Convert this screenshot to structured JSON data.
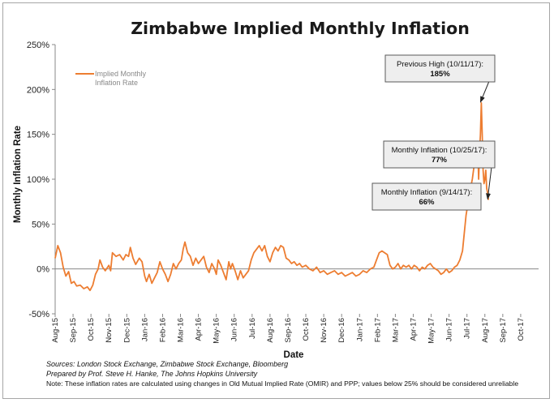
{
  "chart_data": {
    "type": "line",
    "title": "Zimbabwe Implied Monthly Inflation",
    "xlabel": "Date",
    "ylabel": "Monthly Inflation Rate",
    "ylim": [
      -50,
      250
    ],
    "yticks": [
      -50,
      0,
      50,
      100,
      150,
      200,
      250
    ],
    "ytick_labels": [
      "-50%",
      "0%",
      "50%",
      "100%",
      "150%",
      "200%",
      "250%"
    ],
    "x_domain": [
      0,
      27
    ],
    "x_unit": "months since Aug-15",
    "xtick_labels": [
      "Aug-15",
      "Sep-15",
      "Oct-15",
      "Nov-15",
      "Dec-15",
      "Jan-16",
      "Feb-16",
      "Mar-16",
      "Apr-16",
      "May-16",
      "Jun-16",
      "Jul-16",
      "Aug-16",
      "Sep-16",
      "Oct-16",
      "Nov-16",
      "Dec-16",
      "Jan-17",
      "Feb-17",
      "Mar-17",
      "Apr-17",
      "May-17",
      "Jun-17",
      "Jul-17",
      "Aug-17",
      "Sep-17",
      "Oct-17"
    ],
    "grid": false,
    "legend": {
      "position": "top-left",
      "text": "Implied Monthly Inflation Rate"
    },
    "series": [
      {
        "name": "Implied Monthly Inflation Rate",
        "color": "#ED7D31",
        "points": [
          [
            0.0,
            12
          ],
          [
            0.15,
            26
          ],
          [
            0.3,
            18
          ],
          [
            0.45,
            2
          ],
          [
            0.6,
            -8
          ],
          [
            0.75,
            -3
          ],
          [
            0.9,
            -16
          ],
          [
            1.05,
            -14
          ],
          [
            1.2,
            -19
          ],
          [
            1.4,
            -18
          ],
          [
            1.6,
            -22
          ],
          [
            1.8,
            -20
          ],
          [
            1.95,
            -24
          ],
          [
            2.1,
            -18
          ],
          [
            2.25,
            -6
          ],
          [
            2.4,
            0
          ],
          [
            2.5,
            10
          ],
          [
            2.65,
            2
          ],
          [
            2.8,
            -2
          ],
          [
            3.0,
            4
          ],
          [
            3.1,
            -2
          ],
          [
            3.2,
            18
          ],
          [
            3.4,
            14
          ],
          [
            3.6,
            16
          ],
          [
            3.8,
            10
          ],
          [
            3.95,
            16
          ],
          [
            4.1,
            14
          ],
          [
            4.2,
            24
          ],
          [
            4.35,
            12
          ],
          [
            4.5,
            5
          ],
          [
            4.7,
            12
          ],
          [
            4.85,
            8
          ],
          [
            5.0,
            -8
          ],
          [
            5.1,
            -14
          ],
          [
            5.25,
            -6
          ],
          [
            5.4,
            -16
          ],
          [
            5.55,
            -10
          ],
          [
            5.7,
            -4
          ],
          [
            5.85,
            8
          ],
          [
            6.0,
            0
          ],
          [
            6.15,
            -6
          ],
          [
            6.3,
            -14
          ],
          [
            6.45,
            -6
          ],
          [
            6.6,
            6
          ],
          [
            6.75,
            0
          ],
          [
            6.9,
            6
          ],
          [
            7.05,
            10
          ],
          [
            7.15,
            22
          ],
          [
            7.25,
            30
          ],
          [
            7.4,
            18
          ],
          [
            7.55,
            14
          ],
          [
            7.7,
            4
          ],
          [
            7.85,
            12
          ],
          [
            8.0,
            6
          ],
          [
            8.15,
            10
          ],
          [
            8.3,
            14
          ],
          [
            8.45,
            2
          ],
          [
            8.6,
            -4
          ],
          [
            8.75,
            6
          ],
          [
            8.9,
            0
          ],
          [
            9.0,
            -6
          ],
          [
            9.1,
            10
          ],
          [
            9.25,
            4
          ],
          [
            9.4,
            -4
          ],
          [
            9.55,
            -12
          ],
          [
            9.7,
            8
          ],
          [
            9.8,
            0
          ],
          [
            9.9,
            6
          ],
          [
            10.05,
            -2
          ],
          [
            10.2,
            -12
          ],
          [
            10.35,
            -2
          ],
          [
            10.5,
            -10
          ],
          [
            10.65,
            -6
          ],
          [
            10.8,
            -2
          ],
          [
            10.95,
            10
          ],
          [
            11.1,
            18
          ],
          [
            11.25,
            22
          ],
          [
            11.4,
            26
          ],
          [
            11.55,
            20
          ],
          [
            11.7,
            26
          ],
          [
            11.85,
            14
          ],
          [
            12.0,
            8
          ],
          [
            12.15,
            18
          ],
          [
            12.3,
            24
          ],
          [
            12.45,
            20
          ],
          [
            12.6,
            26
          ],
          [
            12.75,
            24
          ],
          [
            12.9,
            12
          ],
          [
            13.05,
            10
          ],
          [
            13.2,
            6
          ],
          [
            13.35,
            8
          ],
          [
            13.5,
            4
          ],
          [
            13.65,
            6
          ],
          [
            13.8,
            2
          ],
          [
            14.0,
            4
          ],
          [
            14.2,
            0
          ],
          [
            14.4,
            -2
          ],
          [
            14.6,
            2
          ],
          [
            14.8,
            -4
          ],
          [
            15.0,
            -2
          ],
          [
            15.2,
            -6
          ],
          [
            15.4,
            -4
          ],
          [
            15.6,
            -2
          ],
          [
            15.8,
            -6
          ],
          [
            16.0,
            -4
          ],
          [
            16.2,
            -8
          ],
          [
            16.4,
            -6
          ],
          [
            16.6,
            -4
          ],
          [
            16.8,
            -8
          ],
          [
            17.0,
            -6
          ],
          [
            17.2,
            -2
          ],
          [
            17.4,
            -4
          ],
          [
            17.6,
            0
          ],
          [
            17.8,
            2
          ],
          [
            17.95,
            10
          ],
          [
            18.1,
            18
          ],
          [
            18.25,
            20
          ],
          [
            18.4,
            18
          ],
          [
            18.55,
            16
          ],
          [
            18.7,
            4
          ],
          [
            18.85,
            0
          ],
          [
            19.0,
            2
          ],
          [
            19.15,
            6
          ],
          [
            19.3,
            0
          ],
          [
            19.45,
            4
          ],
          [
            19.6,
            2
          ],
          [
            19.75,
            4
          ],
          [
            19.9,
            0
          ],
          [
            20.05,
            4
          ],
          [
            20.2,
            2
          ],
          [
            20.35,
            -2
          ],
          [
            20.5,
            2
          ],
          [
            20.65,
            0
          ],
          [
            20.8,
            4
          ],
          [
            20.95,
            6
          ],
          [
            21.1,
            2
          ],
          [
            21.25,
            0
          ],
          [
            21.4,
            -2
          ],
          [
            21.55,
            -6
          ],
          [
            21.7,
            -4
          ],
          [
            21.85,
            0
          ],
          [
            22.0,
            -4
          ],
          [
            22.15,
            -2
          ],
          [
            22.3,
            2
          ],
          [
            22.45,
            4
          ],
          [
            22.6,
            10
          ],
          [
            22.75,
            20
          ],
          [
            22.85,
            40
          ],
          [
            22.95,
            60
          ],
          [
            23.0,
            66
          ],
          [
            23.1,
            70
          ],
          [
            23.2,
            90
          ],
          [
            23.3,
            100
          ],
          [
            23.4,
            115
          ],
          [
            23.45,
            128
          ],
          [
            23.5,
            140
          ],
          [
            23.55,
            135
          ],
          [
            23.6,
            140
          ],
          [
            23.65,
            100
          ],
          [
            23.7,
            130
          ],
          [
            23.75,
            150
          ],
          [
            23.8,
            185
          ],
          [
            23.85,
            150
          ],
          [
            23.9,
            110
          ],
          [
            23.95,
            95
          ],
          [
            24.0,
            100
          ],
          [
            24.05,
            110
          ],
          [
            24.1,
            90
          ],
          [
            24.15,
            85
          ],
          [
            24.2,
            77
          ]
        ]
      }
    ],
    "annotations": [
      {
        "label": "Previous High (10/11/17):",
        "value": "185%",
        "x": 23.8,
        "y": 185
      },
      {
        "label": "Monthly Inflation (10/25/17):",
        "value": "77%",
        "x": 24.2,
        "y": 77
      },
      {
        "label": "Monthly Inflation (9/14/17):",
        "value": "66%",
        "x": 23.0,
        "y": 66
      }
    ]
  },
  "notes": {
    "sources": "Sources: London Stock Exchange, Zimbabwe Stock Exchange, Bloomberg",
    "prepared_by": "Prepared by Prof. Steve H. Hanke, The Johns Hopkins University",
    "note": "Note: These inflation rates are calculated using changes in Old Mutual Implied Rate (OMIR) and PPP; values below 25% should be considered unreliable"
  }
}
